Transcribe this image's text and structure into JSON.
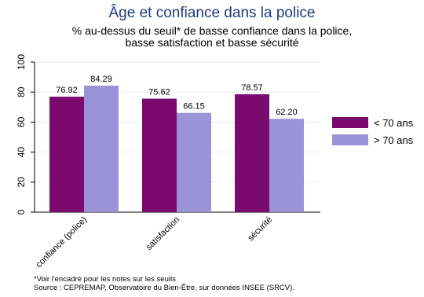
{
  "chart_data": {
    "type": "bar",
    "title": "Âge et confiance dans la police",
    "subtitle_lines": [
      "% au-dessus du seuil* de basse confiance dans la police,",
      "basse satisfaction et basse sécurité"
    ],
    "categories": [
      "confiance (police)",
      "satisfaction",
      "sécurité"
    ],
    "series": [
      {
        "name": "< 70 ans",
        "values": [
          76.92,
          75.62,
          78.57
        ],
        "labels": [
          "76.92",
          "75.62",
          "78.57"
        ],
        "color": "#7a0a6e"
      },
      {
        "name": "> 70 ans",
        "values": [
          84.29,
          66.15,
          62.2
        ],
        "labels": [
          "84.29",
          "66.15",
          "62.20"
        ],
        "color": "#9b92d8"
      }
    ],
    "ylim": [
      0,
      100
    ],
    "yticks": [
      "0",
      "20",
      "40",
      "60",
      "80",
      "100"
    ],
    "grid": true,
    "legend_position": "right",
    "notes": [
      "*Voir l'encadré pour les notes sur les seuils",
      "Source : CEPREMAP, Observatoire du Bien-Être, sur données INSEE (SRCV)."
    ]
  }
}
